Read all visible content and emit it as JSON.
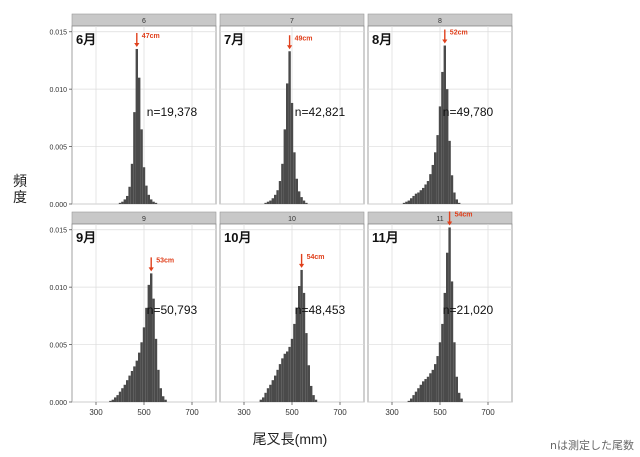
{
  "chart_data": {
    "type": "bar",
    "layout": "faceted histograms, 2 rows x 3 columns",
    "ylabel": "頻度",
    "xlabel": "尾叉長(mm)",
    "x_ticks": [
      300,
      500,
      700
    ],
    "y_ticks": [
      "0.000",
      "0.005",
      "0.010",
      "0.015"
    ],
    "xlim": [
      200,
      800
    ],
    "ylim": [
      0,
      0.0155
    ],
    "grid": true,
    "bar_color": "#4a4a4a",
    "marker_color": "#e0401c",
    "strip_color": "#c8c8c8",
    "panels": [
      {
        "strip": "6",
        "month": "6月",
        "n": "n=19,378",
        "mode_label": "47cm",
        "mode_mm": 470,
        "peak": 0.0135,
        "bins": [
          [
            400,
            0.0001
          ],
          [
            410,
            0.0002
          ],
          [
            420,
            0.0004
          ],
          [
            430,
            0.0007
          ],
          [
            440,
            0.0015
          ],
          [
            450,
            0.0035
          ],
          [
            460,
            0.008
          ],
          [
            470,
            0.0135
          ],
          [
            480,
            0.011
          ],
          [
            490,
            0.0065
          ],
          [
            500,
            0.0032
          ],
          [
            510,
            0.0016
          ],
          [
            520,
            0.0008
          ],
          [
            530,
            0.0004
          ],
          [
            540,
            0.0002
          ],
          [
            550,
            0.0001
          ]
        ]
      },
      {
        "strip": "7",
        "month": "7月",
        "n": "n=42,821",
        "mode_label": "49cm",
        "mode_mm": 490,
        "peak": 0.0133,
        "bins": [
          [
            390,
            0.0001
          ],
          [
            400,
            0.0002
          ],
          [
            410,
            0.0003
          ],
          [
            420,
            0.0005
          ],
          [
            430,
            0.0008
          ],
          [
            440,
            0.0012
          ],
          [
            450,
            0.002
          ],
          [
            460,
            0.0035
          ],
          [
            470,
            0.0065
          ],
          [
            480,
            0.0105
          ],
          [
            490,
            0.0133
          ],
          [
            500,
            0.0088
          ],
          [
            510,
            0.0045
          ],
          [
            520,
            0.0022
          ],
          [
            530,
            0.0011
          ],
          [
            540,
            0.0006
          ],
          [
            550,
            0.0003
          ],
          [
            560,
            0.0001
          ]
        ]
      },
      {
        "strip": "8",
        "month": "8月",
        "n": "n=49,780",
        "mode_label": "52cm",
        "mode_mm": 520,
        "peak": 0.0138,
        "bins": [
          [
            350,
            0.0001
          ],
          [
            360,
            0.0002
          ],
          [
            370,
            0.0003
          ],
          [
            380,
            0.0005
          ],
          [
            390,
            0.0007
          ],
          [
            400,
            0.0009
          ],
          [
            410,
            0.001
          ],
          [
            420,
            0.0012
          ],
          [
            430,
            0.0014
          ],
          [
            440,
            0.0017
          ],
          [
            450,
            0.002
          ],
          [
            460,
            0.0026
          ],
          [
            470,
            0.0034
          ],
          [
            480,
            0.0045
          ],
          [
            490,
            0.006
          ],
          [
            500,
            0.0085
          ],
          [
            510,
            0.0115
          ],
          [
            520,
            0.0138
          ],
          [
            530,
            0.01
          ],
          [
            540,
            0.0055
          ],
          [
            550,
            0.0025
          ],
          [
            560,
            0.001
          ],
          [
            570,
            0.0004
          ],
          [
            580,
            0.0001
          ]
        ]
      },
      {
        "strip": "9",
        "month": "9月",
        "n": "n=50,793",
        "mode_label": "53cm",
        "mode_mm": 530,
        "peak": 0.0112,
        "bins": [
          [
            360,
            0.0001
          ],
          [
            370,
            0.0002
          ],
          [
            380,
            0.0004
          ],
          [
            390,
            0.0006
          ],
          [
            400,
            0.0009
          ],
          [
            410,
            0.0012
          ],
          [
            420,
            0.0015
          ],
          [
            430,
            0.0019
          ],
          [
            440,
            0.0023
          ],
          [
            450,
            0.0027
          ],
          [
            460,
            0.0031
          ],
          [
            470,
            0.0036
          ],
          [
            480,
            0.0043
          ],
          [
            490,
            0.0052
          ],
          [
            500,
            0.0065
          ],
          [
            510,
            0.0082
          ],
          [
            520,
            0.0102
          ],
          [
            530,
            0.0112
          ],
          [
            540,
            0.009
          ],
          [
            550,
            0.0055
          ],
          [
            560,
            0.0028
          ],
          [
            570,
            0.0012
          ],
          [
            580,
            0.0005
          ],
          [
            590,
            0.0002
          ]
        ]
      },
      {
        "strip": "10",
        "month": "10月",
        "n": "n=48,453",
        "mode_label": "54cm",
        "mode_mm": 540,
        "peak": 0.0115,
        "bins": [
          [
            370,
            0.0002
          ],
          [
            380,
            0.0004
          ],
          [
            390,
            0.0008
          ],
          [
            400,
            0.0012
          ],
          [
            410,
            0.0015
          ],
          [
            420,
            0.0019
          ],
          [
            430,
            0.0023
          ],
          [
            440,
            0.0028
          ],
          [
            450,
            0.0033
          ],
          [
            460,
            0.0038
          ],
          [
            470,
            0.0042
          ],
          [
            480,
            0.0044
          ],
          [
            490,
            0.0048
          ],
          [
            500,
            0.0055
          ],
          [
            510,
            0.0068
          ],
          [
            520,
            0.0082
          ],
          [
            530,
            0.0101
          ],
          [
            540,
            0.0115
          ],
          [
            550,
            0.0095
          ],
          [
            560,
            0.006
          ],
          [
            570,
            0.0032
          ],
          [
            580,
            0.0014
          ],
          [
            590,
            0.0006
          ],
          [
            600,
            0.0002
          ]
        ]
      },
      {
        "strip": "11",
        "month": "11月",
        "n": "n=21,020",
        "mode_label": "54cm",
        "mode_mm": 540,
        "peak": 0.0152,
        "bins": [
          [
            370,
            0.0001
          ],
          [
            380,
            0.0003
          ],
          [
            390,
            0.0006
          ],
          [
            400,
            0.0009
          ],
          [
            410,
            0.0012
          ],
          [
            420,
            0.0015
          ],
          [
            430,
            0.0018
          ],
          [
            440,
            0.002
          ],
          [
            450,
            0.0022
          ],
          [
            460,
            0.0025
          ],
          [
            470,
            0.0028
          ],
          [
            480,
            0.0033
          ],
          [
            490,
            0.004
          ],
          [
            500,
            0.0052
          ],
          [
            510,
            0.0068
          ],
          [
            520,
            0.0095
          ],
          [
            530,
            0.013
          ],
          [
            540,
            0.0152
          ],
          [
            550,
            0.0105
          ],
          [
            560,
            0.0052
          ],
          [
            570,
            0.0022
          ],
          [
            580,
            0.0008
          ],
          [
            590,
            0.0003
          ]
        ]
      }
    ]
  },
  "footnote": "nは測定した尾数"
}
